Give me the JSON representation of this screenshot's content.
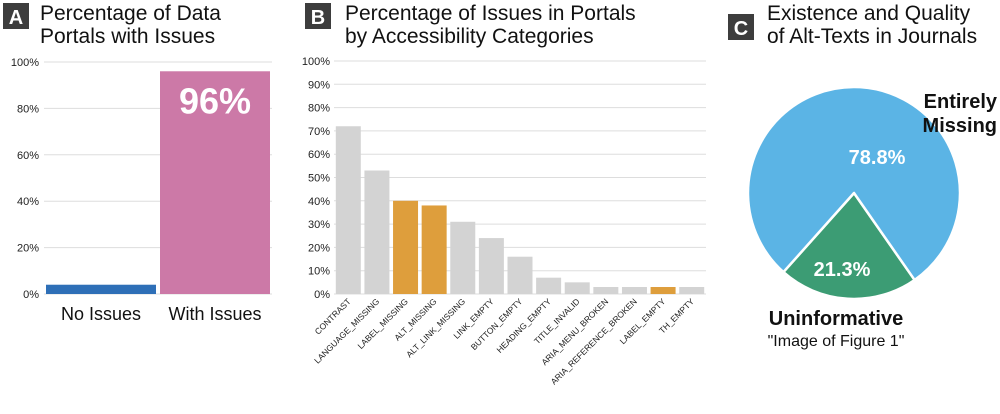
{
  "chart_data": [
    {
      "panel": "A",
      "type": "bar",
      "title_lines": [
        "Percentage of Data",
        "Portals with Issues"
      ],
      "categories": [
        "No Issues",
        "With Issues"
      ],
      "values": [
        4,
        96
      ],
      "colors": [
        "#2e6fb7",
        "#cc79a7"
      ],
      "data_label": "96%",
      "ylim": [
        0,
        100
      ],
      "yticks": [
        "0%",
        "20%",
        "40%",
        "60%",
        "80%",
        "100%"
      ],
      "grid": true
    },
    {
      "panel": "B",
      "type": "bar",
      "title_lines": [
        "Percentage of Issues in Portals",
        "by Accessibility Categories"
      ],
      "categories": [
        "CONTRAST",
        "LANGUAGE_MISSING",
        "LABEL_MISSING",
        "ALT_MISSING",
        "ALT_LINK_MISSING",
        "LINK_EMPTY",
        "BUTTON_EMPTY",
        "HEADING_EMPTY",
        "TITLE_INVALID",
        "ARIA_MENU_BROKEN",
        "ARIA_REFERENCE_BROKEN",
        "LABEL_EMPTY",
        "TH_EMPTY"
      ],
      "values": [
        72,
        53,
        40,
        38,
        31,
        24,
        16,
        7,
        5,
        3,
        3,
        3,
        3
      ],
      "highlighted": [
        "LABEL_MISSING",
        "ALT_MISSING",
        "LABEL_EMPTY"
      ],
      "colors": {
        "default": "#d3d3d3",
        "highlight": "#de9e3c"
      },
      "ylim": [
        0,
        100
      ],
      "yticks": [
        "0%",
        "10%",
        "20%",
        "30%",
        "40%",
        "50%",
        "60%",
        "70%",
        "80%",
        "90%",
        "100%"
      ],
      "grid": true
    },
    {
      "panel": "C",
      "type": "pie",
      "title_lines": [
        "Existence and Quality",
        "of Alt-Texts in Journals"
      ],
      "slices": [
        {
          "label_lines": [
            "Entirely",
            "Missing"
          ],
          "value": 78.8,
          "value_label": "78.8%",
          "color": "#5bb4e5"
        },
        {
          "label_lines": [
            "Uninformative"
          ],
          "sublabel": "\"Image of Figure 1\"",
          "value": 21.3,
          "value_label": "21.3%",
          "color": "#3c9c74"
        }
      ]
    }
  ]
}
